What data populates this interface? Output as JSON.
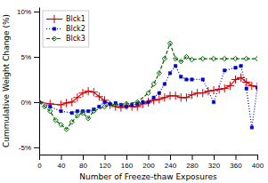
{
  "chart_data": {
    "type": "line",
    "xlabel": "Number of Freeze-thaw Exposures",
    "ylabel": "Cummulative Weight Change (%)",
    "xlim": [
      0,
      400
    ],
    "ylim": [
      -0.058,
      0.105
    ],
    "xticks": [
      0,
      40,
      80,
      120,
      160,
      200,
      240,
      280,
      320,
      360,
      400
    ],
    "yticks": [
      {
        "value": -0.05,
        "label": "-5%"
      },
      {
        "value": 0.0,
        "label": "0%"
      },
      {
        "value": 0.05,
        "label": "5%"
      },
      {
        "value": 0.1,
        "label": "10%"
      }
    ],
    "grid": false,
    "legend": "upper left",
    "series": [
      {
        "name": "Blck1",
        "color": "#cc0000",
        "marker": "plus",
        "line_style": "solid",
        "x": [
          0,
          20,
          40,
          50,
          60,
          70,
          80,
          90,
          100,
          110,
          120,
          130,
          140,
          150,
          160,
          170,
          180,
          190,
          200,
          210,
          220,
          230,
          240,
          250,
          260,
          270,
          280,
          290,
          300,
          310,
          320,
          330,
          340,
          350,
          360,
          370,
          380,
          390,
          400
        ],
        "values": [
          0.0,
          -0.002,
          -0.003,
          -0.001,
          0.0,
          0.005,
          0.01,
          0.012,
          0.011,
          0.006,
          0.002,
          -0.003,
          -0.005,
          -0.006,
          -0.004,
          -0.005,
          -0.005,
          -0.002,
          0.0,
          0.002,
          0.003,
          0.005,
          0.007,
          0.007,
          0.005,
          0.005,
          0.008,
          0.01,
          0.01,
          0.012,
          0.013,
          0.014,
          0.015,
          0.018,
          0.025,
          0.027,
          0.022,
          0.018,
          0.017
        ]
      },
      {
        "name": "Blck2",
        "color": "#0000cc",
        "marker": "square",
        "line_style": "dotted",
        "x": [
          0,
          20,
          40,
          60,
          70,
          80,
          90,
          100,
          110,
          120,
          130,
          140,
          150,
          160,
          170,
          180,
          190,
          200,
          210,
          220,
          230,
          240,
          250,
          260,
          270,
          280,
          300,
          320,
          340,
          360,
          370,
          380,
          390,
          400
        ],
        "values": [
          0.0,
          -0.005,
          -0.01,
          -0.012,
          -0.01,
          -0.01,
          -0.01,
          -0.008,
          -0.005,
          0.0,
          -0.002,
          -0.001,
          -0.003,
          -0.005,
          -0.003,
          -0.002,
          0.0,
          0.0,
          0.005,
          0.01,
          0.02,
          0.032,
          0.04,
          0.028,
          0.025,
          0.025,
          0.025,
          0.0,
          0.035,
          0.038,
          0.04,
          0.015,
          -0.028,
          0.016
        ]
      },
      {
        "name": "Blck3",
        "color": "#006600",
        "marker": "diamond",
        "line_style": "dashed",
        "x": [
          0,
          10,
          20,
          30,
          40,
          50,
          60,
          70,
          80,
          90,
          100,
          120,
          140,
          160,
          180,
          200,
          210,
          220,
          230,
          240,
          250,
          260,
          270,
          280,
          300,
          320,
          340,
          360,
          380,
          400
        ],
        "values": [
          0.0,
          -0.005,
          -0.01,
          -0.02,
          -0.025,
          -0.03,
          -0.022,
          -0.015,
          -0.012,
          -0.018,
          -0.01,
          -0.005,
          -0.003,
          -0.002,
          0.0,
          0.01,
          0.02,
          0.032,
          0.048,
          0.065,
          0.048,
          0.045,
          0.05,
          0.047,
          0.048,
          0.048,
          0.048,
          0.048,
          0.048,
          0.048
        ]
      }
    ]
  }
}
